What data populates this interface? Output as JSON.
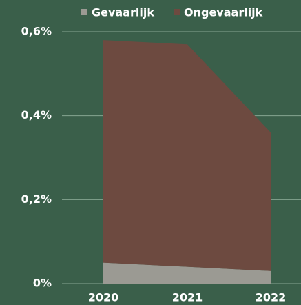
{
  "chart_data": {
    "type": "stacked_area",
    "categories": [
      "2020",
      "2021",
      "2022"
    ],
    "series": [
      {
        "name": "Gevaarlijk",
        "color": "#9b9a93",
        "values": [
          0.05,
          0.04,
          0.03
        ]
      },
      {
        "name": "Ongevaarlijk",
        "color": "#6d4a40",
        "values": [
          0.53,
          0.53,
          0.33
        ]
      }
    ],
    "ylim": [
      0,
      0.6
    ],
    "yticks": [
      {
        "value": 0,
        "label": "0%"
      },
      {
        "value": 0.2,
        "label": "0,2%"
      },
      {
        "value": 0.4,
        "label": "0,4%"
      },
      {
        "value": 0.6,
        "label": "0,6%"
      }
    ],
    "grid": true,
    "legend": "top"
  }
}
